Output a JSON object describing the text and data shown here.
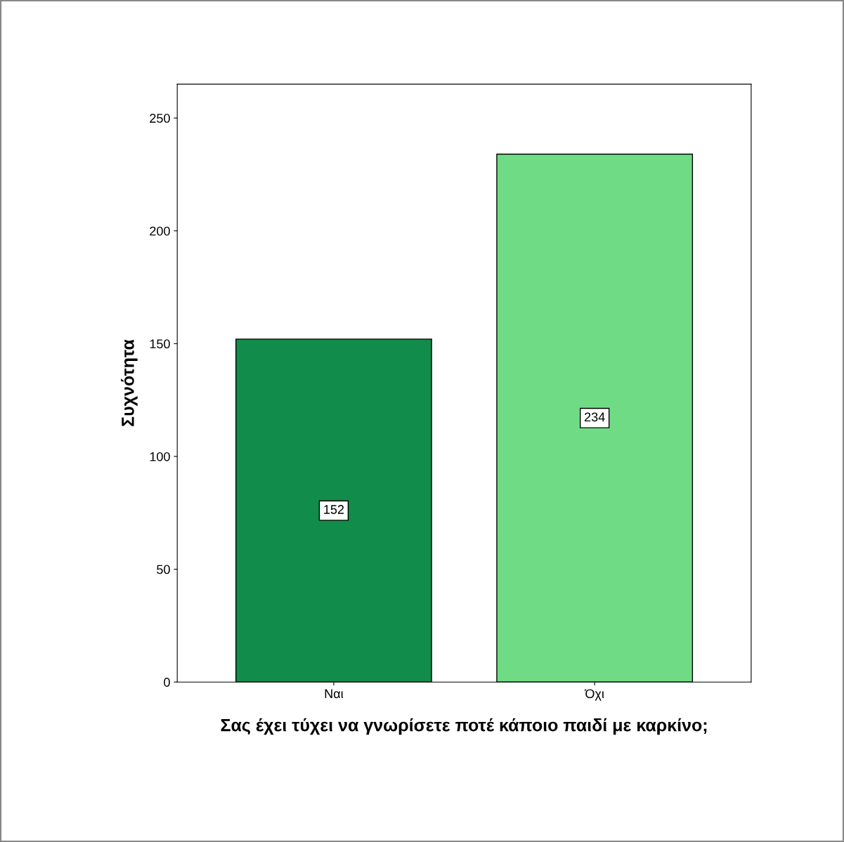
{
  "chart_data": {
    "type": "bar",
    "categories": [
      "Ναι",
      "Όχι"
    ],
    "values": [
      152,
      234
    ],
    "colors": [
      "#128c4a",
      "#6fdc85"
    ],
    "ylabel": "Συχνότητα",
    "xlabel": "Σας έχει τύχει να γνωρίσετε ποτέ κάποιο παιδί με καρκίνο;",
    "ylim": [
      0,
      265
    ],
    "yticks": [
      0,
      50,
      100,
      150,
      200,
      250
    ],
    "data_labels": true,
    "grid": false,
    "legend": false
  }
}
